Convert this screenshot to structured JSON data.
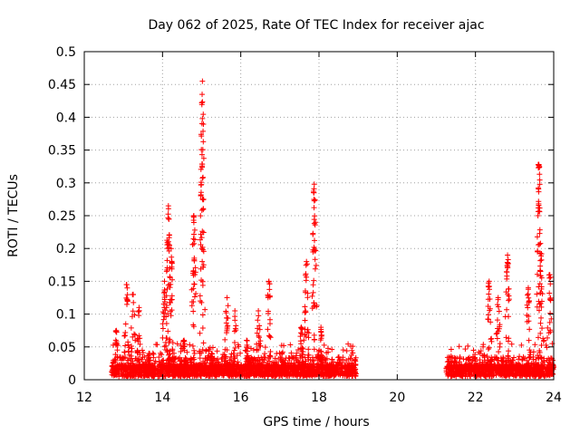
{
  "chart_data": {
    "type": "scatter",
    "title": "Day 062 of 2025, Rate Of TEC Index for receiver ajac",
    "xlabel": "GPS time / hours",
    "ylabel": "ROTI / TECUs",
    "xlim": [
      12,
      24
    ],
    "ylim": [
      0,
      0.5
    ],
    "xticks": [
      12,
      14,
      16,
      18,
      20,
      22,
      24
    ],
    "yticks": [
      0,
      0.05,
      0.1,
      0.15,
      0.2,
      0.25,
      0.3,
      0.35,
      0.4,
      0.45,
      0.5
    ],
    "xtick_labels": [
      "12",
      "14",
      "16",
      "18",
      "20",
      "22",
      "24"
    ],
    "ytick_labels": [
      "0",
      "0.05",
      "0.1",
      "0.15",
      "0.2",
      "0.25",
      "0.3",
      "0.35",
      "0.4",
      "0.45",
      "0.5"
    ],
    "grid": true,
    "marker": "plus",
    "color": "#ff0000",
    "coverage": [
      [
        12.7,
        18.95
      ],
      [
        21.25,
        24.0
      ]
    ],
    "spikes": [
      {
        "x": 12.82,
        "peak": 0.075
      },
      {
        "x": 13.08,
        "peak": 0.145
      },
      {
        "x": 13.25,
        "peak": 0.13
      },
      {
        "x": 13.4,
        "peak": 0.11
      },
      {
        "x": 13.65,
        "peak": 0.04
      },
      {
        "x": 14.05,
        "peak": 0.15
      },
      {
        "x": 14.15,
        "peak": 0.265
      },
      {
        "x": 14.22,
        "peak": 0.2
      },
      {
        "x": 14.55,
        "peak": 0.06
      },
      {
        "x": 14.8,
        "peak": 0.25
      },
      {
        "x": 15.02,
        "peak": 0.455
      },
      {
        "x": 15.25,
        "peak": 0.04
      },
      {
        "x": 15.65,
        "peak": 0.125
      },
      {
        "x": 15.85,
        "peak": 0.105
      },
      {
        "x": 16.15,
        "peak": 0.06
      },
      {
        "x": 16.45,
        "peak": 0.105
      },
      {
        "x": 16.72,
        "peak": 0.15
      },
      {
        "x": 17.05,
        "peak": 0.04
      },
      {
        "x": 17.55,
        "peak": 0.08
      },
      {
        "x": 17.68,
        "peak": 0.18
      },
      {
        "x": 17.88,
        "peak": 0.298
      },
      {
        "x": 18.05,
        "peak": 0.08
      },
      {
        "x": 22.35,
        "peak": 0.15
      },
      {
        "x": 22.58,
        "peak": 0.125
      },
      {
        "x": 22.82,
        "peak": 0.19
      },
      {
        "x": 23.35,
        "peak": 0.14
      },
      {
        "x": 23.62,
        "peak": 0.328
      },
      {
        "x": 23.68,
        "peak": 0.192
      },
      {
        "x": 23.9,
        "peak": 0.16
      }
    ]
  }
}
